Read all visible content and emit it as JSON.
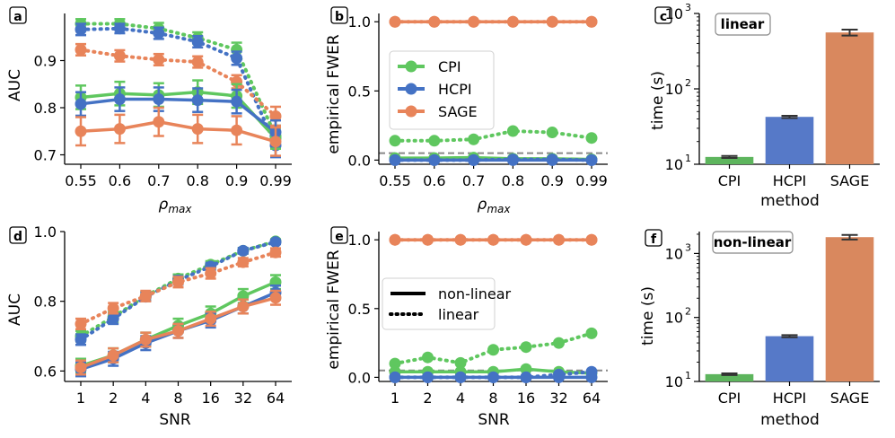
{
  "colors": {
    "CPI": "#5fc75f",
    "HCPI": "#4472c4",
    "SAGE": "#e8845a",
    "ref": "#888888",
    "bar_CPI": "#5db55d",
    "bar_HCPI": "#5679c8",
    "bar_SAGE": "#d9885e"
  },
  "chart_data": [
    {
      "id": "a",
      "type": "line",
      "ylabel": "AUC",
      "xlabel": "ρmax",
      "xlabel_main": "ρ",
      "xlabel_sub": "max",
      "categories": [
        "0.55",
        "0.6",
        "0.7",
        "0.8",
        "0.9",
        "0.99"
      ],
      "ylim": [
        0.68,
        1.0
      ],
      "yticks": [
        0.7,
        0.8,
        0.9
      ],
      "series": [
        {
          "method": "CPI",
          "style": "linear",
          "values": [
            0.978,
            0.978,
            0.968,
            0.948,
            0.923,
            0.74
          ],
          "err": [
            0.01,
            0.01,
            0.012,
            0.012,
            0.015,
            0.022
          ]
        },
        {
          "method": "HCPI",
          "style": "linear",
          "values": [
            0.966,
            0.968,
            0.958,
            0.94,
            0.905,
            0.72
          ],
          "err": [
            0.012,
            0.01,
            0.012,
            0.012,
            0.014,
            0.025
          ]
        },
        {
          "method": "SAGE",
          "style": "linear",
          "values": [
            0.923,
            0.91,
            0.902,
            0.897,
            0.855,
            0.782
          ],
          "err": [
            0.012,
            0.012,
            0.012,
            0.012,
            0.014,
            0.02
          ]
        },
        {
          "method": "CPI",
          "style": "non-linear",
          "values": [
            0.822,
            0.83,
            0.827,
            0.833,
            0.825,
            0.735
          ],
          "err": [
            0.025,
            0.025,
            0.025,
            0.025,
            0.025,
            0.022
          ]
        },
        {
          "method": "HCPI",
          "style": "non-linear",
          "values": [
            0.808,
            0.818,
            0.818,
            0.816,
            0.813,
            0.748
          ],
          "err": [
            0.025,
            0.025,
            0.025,
            0.025,
            0.025,
            0.025
          ]
        },
        {
          "method": "SAGE",
          "style": "non-linear",
          "values": [
            0.75,
            0.755,
            0.77,
            0.755,
            0.752,
            0.728
          ],
          "err": [
            0.03,
            0.03,
            0.03,
            0.03,
            0.03,
            0.03
          ]
        }
      ]
    },
    {
      "id": "b",
      "type": "line",
      "ylabel": "empirical FWER",
      "xlabel": "ρmax",
      "xlabel_main": "ρ",
      "xlabel_sub": "max",
      "categories": [
        "0.55",
        "0.6",
        "0.7",
        "0.8",
        "0.9",
        "0.99"
      ],
      "ylim": [
        -0.03,
        1.06
      ],
      "yticks": [
        0.0,
        0.5,
        1.0
      ],
      "reference_line": 0.05,
      "legend": {
        "position": "center-left",
        "entries": [
          "CPI",
          "HCPI",
          "SAGE"
        ]
      },
      "series": [
        {
          "method": "SAGE",
          "style": "non-linear",
          "values": [
            1.0,
            1.0,
            1.0,
            1.0,
            1.0,
            1.0
          ]
        },
        {
          "method": "SAGE",
          "style": "linear",
          "values": [
            1.0,
            1.0,
            1.0,
            1.0,
            1.0,
            1.0
          ]
        },
        {
          "method": "CPI",
          "style": "linear",
          "values": [
            0.14,
            0.14,
            0.15,
            0.21,
            0.2,
            0.16
          ]
        },
        {
          "method": "CPI",
          "style": "non-linear",
          "values": [
            0.015,
            0.015,
            0.018,
            0.01,
            0.01,
            0.005
          ]
        },
        {
          "method": "HCPI",
          "style": "linear",
          "values": [
            0.0,
            0.0,
            0.0,
            0.005,
            0.005,
            0.0
          ]
        },
        {
          "method": "HCPI",
          "style": "non-linear",
          "values": [
            0.0,
            0.0,
            0.0,
            0.0,
            0.0,
            0.0
          ]
        }
      ]
    },
    {
      "id": "c",
      "type": "bar",
      "scale": "log",
      "title": "linear",
      "ylabel": "time (s)",
      "xlabel": "method",
      "categories": [
        "CPI",
        "HCPI",
        "SAGE"
      ],
      "values": [
        12.5,
        42.5,
        560
      ],
      "err": [
        0.4,
        1.5,
        50
      ],
      "ylim": [
        10,
        1000
      ],
      "yticks": [
        10,
        100,
        1000
      ],
      "ytick_labels": [
        "10",
        "10",
        "10"
      ],
      "ytick_exp": [
        "1",
        "2",
        "3"
      ]
    },
    {
      "id": "d",
      "type": "line",
      "ylabel": "AUC",
      "xlabel": "SNR",
      "categories": [
        "1",
        "2",
        "4",
        "8",
        "16",
        "32",
        "64"
      ],
      "ylim": [
        0.57,
        1.0
      ],
      "yticks": [
        0.6,
        0.8,
        1.0
      ],
      "series": [
        {
          "method": "CPI",
          "style": "linear",
          "values": [
            0.7,
            0.755,
            0.815,
            0.865,
            0.905,
            0.945,
            0.972
          ],
          "err": [
            0.015,
            0.015,
            0.012,
            0.012,
            0.01,
            0.008,
            0.006
          ]
        },
        {
          "method": "HCPI",
          "style": "linear",
          "values": [
            0.69,
            0.75,
            0.813,
            0.86,
            0.9,
            0.945,
            0.97
          ],
          "err": [
            0.015,
            0.015,
            0.012,
            0.012,
            0.01,
            0.008,
            0.006
          ]
        },
        {
          "method": "SAGE",
          "style": "linear",
          "values": [
            0.735,
            0.78,
            0.815,
            0.855,
            0.88,
            0.912,
            0.94
          ],
          "err": [
            0.015,
            0.015,
            0.015,
            0.015,
            0.015,
            0.012,
            0.012
          ]
        },
        {
          "method": "CPI",
          "style": "non-linear",
          "values": [
            0.615,
            0.645,
            0.69,
            0.73,
            0.765,
            0.815,
            0.855
          ],
          "err": [
            0.02,
            0.02,
            0.02,
            0.02,
            0.02,
            0.02,
            0.02
          ]
        },
        {
          "method": "HCPI",
          "style": "non-linear",
          "values": [
            0.605,
            0.635,
            0.68,
            0.715,
            0.745,
            0.785,
            0.825
          ],
          "err": [
            0.02,
            0.02,
            0.02,
            0.02,
            0.02,
            0.02,
            0.02
          ]
        },
        {
          "method": "SAGE",
          "style": "non-linear",
          "values": [
            0.61,
            0.645,
            0.69,
            0.715,
            0.75,
            0.785,
            0.81
          ],
          "err": [
            0.02,
            0.02,
            0.02,
            0.02,
            0.02,
            0.02,
            0.02
          ]
        }
      ]
    },
    {
      "id": "e",
      "type": "line",
      "ylabel": "empirical FWER",
      "xlabel": "SNR",
      "categories": [
        "1",
        "2",
        "4",
        "8",
        "16",
        "32",
        "64"
      ],
      "ylim": [
        -0.03,
        1.06
      ],
      "yticks": [
        0.0,
        0.5,
        1.0
      ],
      "reference_line": 0.05,
      "legend": {
        "position": "center-left",
        "entries": [
          "non-linear",
          "linear"
        ]
      },
      "series": [
        {
          "method": "SAGE",
          "style": "non-linear",
          "values": [
            1.0,
            1.0,
            1.0,
            1.0,
            1.0,
            1.0,
            1.0
          ]
        },
        {
          "method": "SAGE",
          "style": "linear",
          "values": [
            1.0,
            1.0,
            1.0,
            1.0,
            1.0,
            1.0,
            1.0
          ]
        },
        {
          "method": "CPI",
          "style": "linear",
          "values": [
            0.1,
            0.145,
            0.105,
            0.2,
            0.22,
            0.25,
            0.32
          ]
        },
        {
          "method": "CPI",
          "style": "non-linear",
          "values": [
            0.04,
            0.04,
            0.04,
            0.04,
            0.06,
            0.04,
            0.03
          ]
        },
        {
          "method": "HCPI",
          "style": "linear",
          "values": [
            0.0,
            0.0,
            0.0,
            0.0,
            0.0,
            0.02,
            0.04
          ]
        },
        {
          "method": "HCPI",
          "style": "non-linear",
          "values": [
            0.0,
            0.0,
            0.0,
            0.0,
            0.0,
            0.0,
            0.0
          ]
        }
      ]
    },
    {
      "id": "f",
      "type": "bar",
      "scale": "log",
      "title": "non-linear",
      "ylabel": "time (s)",
      "xlabel": "method",
      "categories": [
        "CPI",
        "HCPI",
        "SAGE"
      ],
      "values": [
        13,
        51,
        1800
      ],
      "err": [
        0.4,
        2,
        150
      ],
      "ylim": [
        10,
        2200
      ],
      "yticks": [
        10,
        100,
        1000
      ],
      "ytick_labels": [
        "10",
        "10",
        "10"
      ],
      "ytick_exp": [
        "1",
        "2",
        "3"
      ]
    }
  ]
}
